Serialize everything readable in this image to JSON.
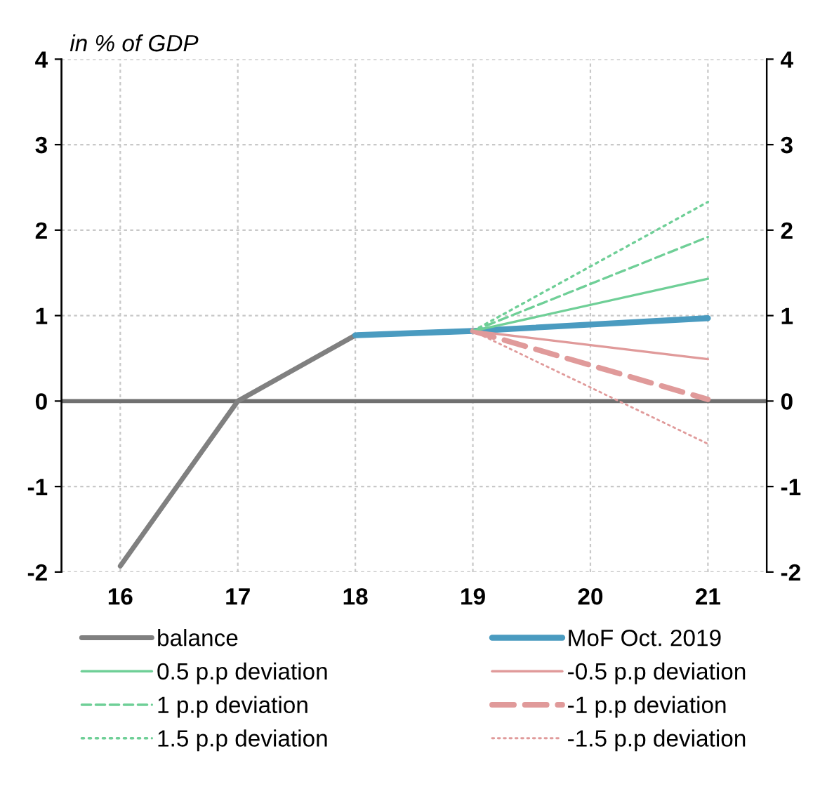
{
  "chart_data": {
    "type": "line",
    "subtitle": "in % of GDP",
    "xlim": [
      15.5,
      21.5
    ],
    "xticks": [
      16,
      17,
      18,
      19,
      20,
      21
    ],
    "ylim": [
      -2,
      4
    ],
    "yticks": [
      -2,
      -1,
      0,
      1,
      2,
      3,
      4
    ],
    "y2lim": [
      -2,
      4
    ],
    "y2ticks": [
      -2,
      -1,
      0,
      1,
      2,
      3,
      4
    ],
    "grid": true,
    "legend": "bottom",
    "marker": "none",
    "series": [
      {
        "name": "balance",
        "color": "#808080",
        "line_style": "solid",
        "x": [
          16,
          17,
          18,
          19
        ],
        "values": [
          -1.93,
          0,
          0.77,
          0.82
        ]
      },
      {
        "name": "0.5 p.p deviation",
        "color": "#6fcf97",
        "line_style": "solid",
        "x": [
          19,
          21
        ],
        "values": [
          0.82,
          1.43
        ]
      },
      {
        "name": "1 p.p deviation",
        "color": "#6fcf97",
        "line_style": "dashed",
        "x": [
          19,
          21
        ],
        "values": [
          0.82,
          1.92
        ]
      },
      {
        "name": "1.5 p.p deviation",
        "color": "#6fcf97",
        "line_style": "dotted",
        "x": [
          19,
          21
        ],
        "values": [
          0.82,
          2.33
        ]
      },
      {
        "name": "MoF Oct. 2019",
        "color": "#4a9bc0",
        "line_style": "solid",
        "x": [
          18,
          19,
          21
        ],
        "values": [
          0.77,
          0.82,
          0.97
        ]
      },
      {
        "name": "-0.5 p.p deviation",
        "color": "#e09a9a",
        "line_style": "solid",
        "x": [
          19,
          21
        ],
        "values": [
          0.82,
          0.49
        ]
      },
      {
        "name": "-1 p.p deviation",
        "color": "#e09a9a",
        "line_style": "dashed",
        "x": [
          19,
          21
        ],
        "values": [
          0.82,
          0.02
        ]
      },
      {
        "name": "-1.5 p.p deviation",
        "color": "#e09a9a",
        "line_style": "dotted",
        "x": [
          19,
          21
        ],
        "values": [
          0.82,
          -0.5
        ]
      }
    ]
  }
}
